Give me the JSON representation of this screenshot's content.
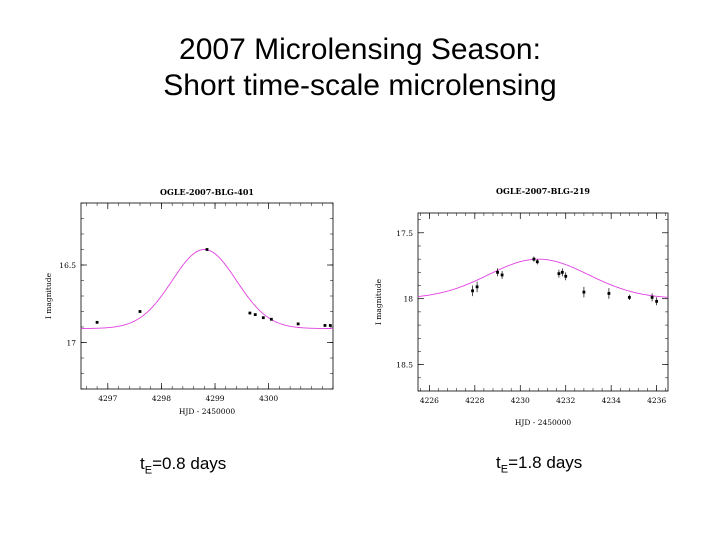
{
  "slide": {
    "title_line1": "2007 Microlensing Season:",
    "title_line2": "Short time-scale microlensing"
  },
  "captions": [
    {
      "prefix": "t",
      "sub": "E",
      "rest": "=0.8 days"
    },
    {
      "prefix": "t",
      "sub": "E",
      "rest": "=1.8 days"
    }
  ],
  "colors": {
    "curve": "#e040e0",
    "points": "#000000"
  },
  "chart_data": [
    {
      "type": "scatter",
      "title": "OGLE-2007-BLG-401",
      "xlabel": "HJD - 2450000",
      "ylabel": "I magnitude",
      "xlim": [
        4296.5,
        4301.2
      ],
      "ylim": [
        17.3,
        16.1
      ],
      "y_inverted": true,
      "xticks": [
        4297,
        4298,
        4299,
        4300
      ],
      "yticks": [
        16.5,
        17
      ],
      "model_curve": {
        "t0": 4298.8,
        "min_mag": 16.4,
        "base_mag": 16.91,
        "amplitude": 0.51,
        "width": 0.6
      },
      "points": [
        {
          "x": 4296.8,
          "y": 16.87
        },
        {
          "x": 4297.6,
          "y": 16.8
        },
        {
          "x": 4298.85,
          "y": 16.4
        },
        {
          "x": 4299.65,
          "y": 16.81
        },
        {
          "x": 4299.75,
          "y": 16.82
        },
        {
          "x": 4299.9,
          "y": 16.84
        },
        {
          "x": 4300.05,
          "y": 16.85
        },
        {
          "x": 4300.55,
          "y": 16.88
        },
        {
          "x": 4301.05,
          "y": 16.89
        },
        {
          "x": 4301.15,
          "y": 16.89
        }
      ]
    },
    {
      "type": "scatter",
      "title": "OGLE-2007-BLG-219",
      "xlabel": "HJD - 2450000",
      "ylabel": "I magnitude",
      "xlim": [
        4225.5,
        4236.5
      ],
      "ylim": [
        18.7,
        17.35
      ],
      "y_inverted": true,
      "xticks": [
        4226,
        4228,
        4230,
        4232,
        4234,
        4236
      ],
      "yticks": [
        17.5,
        18,
        18.5
      ],
      "model_curve": {
        "t0": 4230.8,
        "min_mag": 17.7,
        "base_mag": 18.0,
        "amplitude": 0.3,
        "width": 2.2
      },
      "points": [
        {
          "x": 4227.9,
          "y": 17.94,
          "err": 0.04
        },
        {
          "x": 4228.1,
          "y": 17.91,
          "err": 0.04
        },
        {
          "x": 4229.0,
          "y": 17.8,
          "err": 0.03
        },
        {
          "x": 4229.2,
          "y": 17.82,
          "err": 0.03
        },
        {
          "x": 4230.6,
          "y": 17.7,
          "err": 0.02
        },
        {
          "x": 4230.75,
          "y": 17.72,
          "err": 0.02
        },
        {
          "x": 4231.7,
          "y": 17.81,
          "err": 0.03
        },
        {
          "x": 4231.85,
          "y": 17.8,
          "err": 0.03
        },
        {
          "x": 4232.0,
          "y": 17.83,
          "err": 0.03
        },
        {
          "x": 4232.8,
          "y": 17.95,
          "err": 0.04
        },
        {
          "x": 4233.9,
          "y": 17.96,
          "err": 0.04
        },
        {
          "x": 4234.8,
          "y": 17.99,
          "err": 0.02
        },
        {
          "x": 4235.8,
          "y": 17.99,
          "err": 0.03
        },
        {
          "x": 4236.0,
          "y": 18.02,
          "err": 0.03
        }
      ]
    }
  ]
}
